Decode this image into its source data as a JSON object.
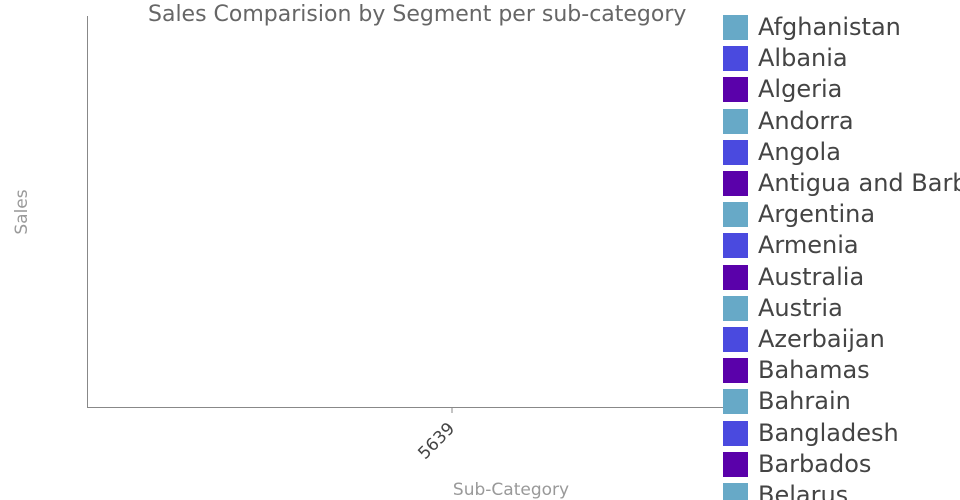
{
  "chart_data": {
    "type": "bar",
    "title": "Sales Comparision by Segment per sub-category",
    "xlabel": "Sub-Category",
    "ylabel": "Sales",
    "categories": [
      "5639"
    ],
    "grid": false,
    "legend_position": "right",
    "series": [
      {
        "name": "Afghanistan",
        "color": "#67a9c7",
        "values": [
          0
        ]
      },
      {
        "name": "Albania",
        "color": "#4a4adf",
        "values": [
          0
        ]
      },
      {
        "name": "Algeria",
        "color": "#5a01aa",
        "values": [
          0
        ]
      },
      {
        "name": "Andorra",
        "color": "#67a9c7",
        "values": [
          0
        ]
      },
      {
        "name": "Angola",
        "color": "#4a4adf",
        "values": [
          0
        ]
      },
      {
        "name": "Antigua and Barbuda",
        "color": "#5a01aa",
        "values": [
          0
        ]
      },
      {
        "name": "Argentina",
        "color": "#67a9c7",
        "values": [
          0
        ]
      },
      {
        "name": "Armenia",
        "color": "#4a4adf",
        "values": [
          0
        ]
      },
      {
        "name": "Australia",
        "color": "#5a01aa",
        "values": [
          0
        ]
      },
      {
        "name": "Austria",
        "color": "#67a9c7",
        "values": [
          0
        ]
      },
      {
        "name": "Azerbaijan",
        "color": "#4a4adf",
        "values": [
          0
        ]
      },
      {
        "name": "Bahamas",
        "color": "#5a01aa",
        "values": [
          0
        ]
      },
      {
        "name": "Bahrain",
        "color": "#67a9c7",
        "values": [
          0
        ]
      },
      {
        "name": "Bangladesh",
        "color": "#4a4adf",
        "values": [
          0
        ]
      },
      {
        "name": "Barbados",
        "color": "#5a01aa",
        "values": [
          0
        ]
      },
      {
        "name": "Belarus",
        "color": "#67a9c7",
        "values": [
          0
        ]
      }
    ]
  }
}
